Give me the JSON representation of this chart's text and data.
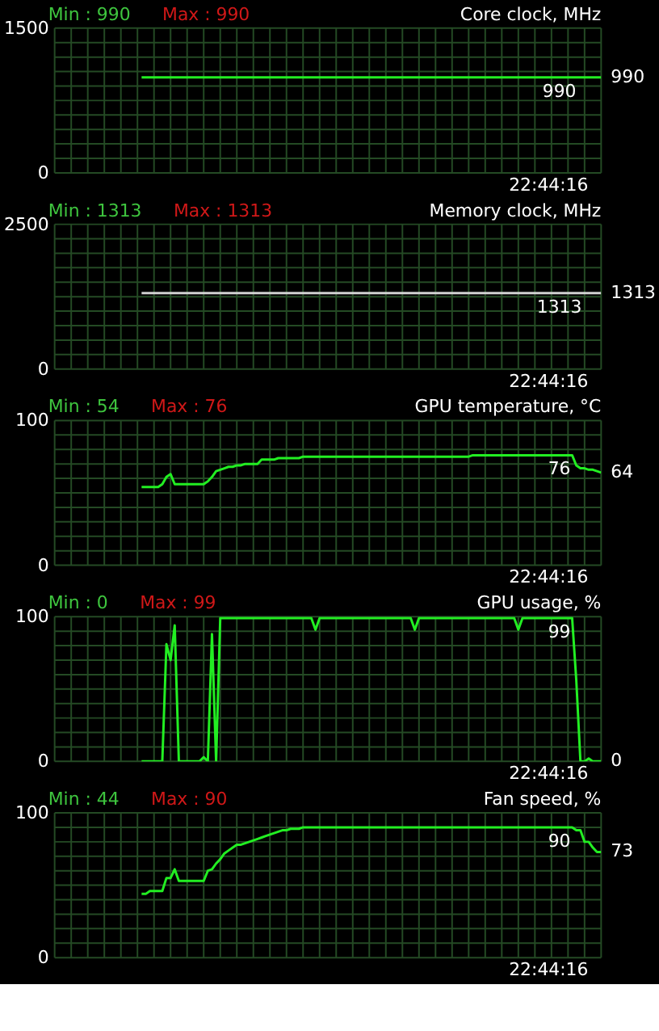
{
  "chart_data": [
    {
      "type": "line",
      "title": "Core clock, MHz",
      "ylim": [
        0,
        1500
      ],
      "grid": true,
      "tick_labels": "y",
      "categories": [
        null,
        null,
        null,
        null,
        null,
        null,
        null,
        null,
        null,
        null,
        null,
        null,
        null,
        null,
        null,
        null,
        null,
        null,
        null,
        null,
        null,
        null,
        null,
        null,
        null,
        null,
        null,
        null,
        null,
        null,
        null,
        null,
        null,
        null,
        null,
        null,
        null,
        null,
        null,
        null,
        null,
        null,
        null,
        null,
        null,
        null,
        null,
        null,
        null,
        null,
        null,
        null,
        null,
        null,
        null,
        null,
        null,
        null,
        null,
        null,
        null,
        null,
        null,
        null,
        null,
        null,
        null,
        null,
        null,
        null,
        null,
        null,
        null,
        null,
        null,
        null,
        null,
        null,
        null,
        null,
        null,
        null,
        null,
        null,
        null,
        null,
        null,
        null,
        null,
        null,
        null,
        null,
        null,
        null,
        null,
        null,
        null,
        null,
        null,
        null,
        null,
        null,
        null,
        null,
        null,
        null,
        null,
        null,
        null,
        null,
        null,
        null,
        null,
        null,
        null,
        null,
        null,
        null,
        null,
        null,
        null,
        null,
        null,
        null,
        null,
        null,
        null,
        null,
        null,
        null,
        null,
        null,
        null
      ],
      "yticks": [
        0,
        {
          "value": 150,
          "label": null
        },
        {
          "value": 300,
          "label": null
        },
        {
          "value": 450,
          "label": null
        },
        {
          "value": 600,
          "label": null
        },
        {
          "value": 750,
          "label": null
        },
        {
          "value": 900,
          "label": null
        },
        {
          "value": 1050,
          "label": null
        },
        {
          "value": 1200,
          "label": null
        },
        {
          "value": 1350,
          "label": null
        },
        1500
      ],
      "annotations": [
        "Min : 990",
        "Max : 990",
        "22:44:16",
        "990",
        "990"
      ],
      "series": [
        {
          "color": "#22ee22",
          "values": [
            null,
            null,
            null,
            null,
            null,
            null,
            null,
            null,
            null,
            null,
            null,
            null,
            null,
            null,
            null,
            null,
            null,
            null,
            null,
            null,
            null,
            990,
            990,
            990,
            990,
            990,
            990,
            990,
            990,
            990,
            990,
            990,
            990,
            990,
            990,
            990,
            990,
            990,
            990,
            990,
            990,
            990,
            990,
            990,
            990,
            990,
            990,
            990,
            990,
            990,
            990,
            990,
            990,
            990,
            990,
            990,
            990,
            990,
            990,
            990,
            990,
            990,
            990,
            990,
            990,
            990,
            990,
            990,
            990,
            990,
            990,
            990,
            990,
            990,
            990,
            990,
            990,
            990,
            990,
            990,
            990,
            990,
            990,
            990,
            990,
            990,
            990,
            990,
            990,
            990,
            990,
            990,
            990,
            990,
            990,
            990,
            990,
            990,
            990,
            990,
            990,
            990,
            990,
            990,
            990,
            990,
            990,
            990,
            990,
            990,
            990,
            990,
            990,
            990,
            990,
            990,
            990,
            990,
            990,
            990,
            990,
            990,
            990,
            990,
            990,
            990,
            990,
            990,
            990,
            990,
            990,
            990,
            990
          ]
        }
      ]
    },
    {
      "type": "line",
      "title": "Memory clock, MHz",
      "ylim": [
        0,
        2500
      ],
      "grid": true,
      "tick_labels": "y",
      "categories": [
        null,
        null,
        null,
        null,
        null,
        null,
        null,
        null,
        null,
        null,
        null,
        null,
        null,
        null,
        null,
        null,
        null,
        null,
        null,
        null,
        null,
        null,
        null,
        null,
        null,
        null,
        null,
        null,
        null,
        null,
        null,
        null,
        null,
        null,
        null,
        null,
        null,
        null,
        null,
        null,
        null,
        null,
        null,
        null,
        null,
        null,
        null,
        null,
        null,
        null,
        null,
        null,
        null,
        null,
        null,
        null,
        null,
        null,
        null,
        null,
        null,
        null,
        null,
        null,
        null,
        null,
        null,
        null,
        null,
        null,
        null,
        null,
        null,
        null,
        null,
        null,
        null,
        null,
        null,
        null,
        null,
        null,
        null,
        null,
        null,
        null,
        null,
        null,
        null,
        null,
        null,
        null,
        null,
        null,
        null,
        null,
        null,
        null,
        null,
        null,
        null,
        null,
        null,
        null,
        null,
        null,
        null,
        null,
        null,
        null,
        null,
        null,
        null,
        null,
        null,
        null,
        null,
        null,
        null,
        null,
        null,
        null,
        null,
        null,
        null,
        null,
        null,
        null,
        null,
        null,
        null,
        null,
        null
      ],
      "yticks": [
        0,
        {
          "value": 250,
          "label": null
        },
        {
          "value": 500,
          "label": null
        },
        {
          "value": 750,
          "label": null
        },
        {
          "value": 1000,
          "label": null
        },
        {
          "value": 1250,
          "label": null
        },
        {
          "value": 1500,
          "label": null
        },
        {
          "value": 1750,
          "label": null
        },
        {
          "value": 2000,
          "label": null
        },
        {
          "value": 2250,
          "label": null
        },
        2500
      ],
      "annotations": [
        "Min : 1313",
        "Max : 1313",
        "22:44:16",
        "1313",
        "1313"
      ],
      "series": [
        {
          "color": "#d0d0d0",
          "values": [
            null,
            null,
            null,
            null,
            null,
            null,
            null,
            null,
            null,
            null,
            null,
            null,
            null,
            null,
            null,
            null,
            null,
            null,
            null,
            null,
            null,
            1313,
            1313,
            1313,
            1313,
            1313,
            1313,
            1313,
            1313,
            1313,
            1313,
            1313,
            1313,
            1313,
            1313,
            1313,
            1313,
            1313,
            1313,
            1313,
            1313,
            1313,
            1313,
            1313,
            1313,
            1313,
            1313,
            1313,
            1313,
            1313,
            1313,
            1313,
            1313,
            1313,
            1313,
            1313,
            1313,
            1313,
            1313,
            1313,
            1313,
            1313,
            1313,
            1313,
            1313,
            1313,
            1313,
            1313,
            1313,
            1313,
            1313,
            1313,
            1313,
            1313,
            1313,
            1313,
            1313,
            1313,
            1313,
            1313,
            1313,
            1313,
            1313,
            1313,
            1313,
            1313,
            1313,
            1313,
            1313,
            1313,
            1313,
            1313,
            1313,
            1313,
            1313,
            1313,
            1313,
            1313,
            1313,
            1313,
            1313,
            1313,
            1313,
            1313,
            1313,
            1313,
            1313,
            1313,
            1313,
            1313,
            1313,
            1313,
            1313,
            1313,
            1313,
            1313,
            1313,
            1313,
            1313,
            1313,
            1313,
            1313,
            1313,
            1313,
            1313,
            1313,
            1313,
            1313,
            1313,
            1313,
            1313,
            1313,
            1313
          ]
        }
      ]
    },
    {
      "type": "line",
      "title": "GPU temperature, °C",
      "ylim": [
        0,
        100
      ],
      "grid": true,
      "tick_labels": "y",
      "categories": [
        null,
        null,
        null,
        null,
        null,
        null,
        null,
        null,
        null,
        null,
        null,
        null,
        null,
        null,
        null,
        null,
        null,
        null,
        null,
        null,
        null,
        null,
        null,
        null,
        null,
        null,
        null,
        null,
        null,
        null,
        null,
        null,
        null,
        null,
        null,
        null,
        null,
        null,
        null,
        null,
        null,
        null,
        null,
        null,
        null,
        null,
        null,
        null,
        null,
        null,
        null,
        null,
        null,
        null,
        null,
        null,
        null,
        null,
        null,
        null,
        null,
        null,
        null,
        null,
        null,
        null,
        null,
        null,
        null,
        null,
        null,
        null,
        null,
        null,
        null,
        null,
        null,
        null,
        null,
        null,
        null,
        null,
        null,
        null,
        null,
        null,
        null,
        null,
        null,
        null,
        null,
        null,
        null,
        null,
        null,
        null,
        null,
        null,
        null,
        null,
        null,
        null,
        null,
        null,
        null,
        null,
        null,
        null,
        null,
        null,
        null,
        null,
        null,
        null,
        null,
        null,
        null,
        null,
        null,
        null,
        null,
        null,
        null,
        null,
        null,
        null,
        null,
        null,
        null,
        null,
        null,
        null,
        null
      ],
      "yticks": [
        0,
        {
          "value": 10,
          "label": null
        },
        {
          "value": 20,
          "label": null
        },
        {
          "value": 30,
          "label": null
        },
        {
          "value": 40,
          "label": null
        },
        {
          "value": 50,
          "label": null
        },
        {
          "value": 60,
          "label": null
        },
        {
          "value": 70,
          "label": null
        },
        {
          "value": 80,
          "label": null
        },
        {
          "value": 90,
          "label": null
        },
        100
      ],
      "annotations": [
        "Min : 54",
        "Max : 76",
        "22:44:16",
        {
          "text": "76",
          "y": 76
        },
        "64"
      ],
      "series": [
        {
          "color": "#22ee22",
          "values": [
            null,
            null,
            null,
            null,
            null,
            null,
            null,
            null,
            null,
            null,
            null,
            null,
            null,
            null,
            null,
            null,
            null,
            null,
            null,
            null,
            null,
            54,
            54,
            54,
            54,
            54,
            56,
            61,
            63,
            56,
            56,
            56,
            56,
            56,
            56,
            56,
            56,
            58,
            61,
            65,
            66,
            67,
            68,
            68,
            69,
            69,
            70,
            70,
            70,
            70,
            73,
            73,
            73,
            73,
            74,
            74,
            74,
            74,
            74,
            74,
            75,
            75,
            75,
            75,
            75,
            75,
            75,
            75,
            75,
            75,
            75,
            75,
            75,
            75,
            75,
            75,
            75,
            75,
            75,
            75,
            75,
            75,
            75,
            75,
            75,
            75,
            75,
            75,
            75,
            75,
            75,
            75,
            75,
            75,
            75,
            75,
            75,
            75,
            75,
            75,
            75,
            76,
            76,
            76,
            76,
            76,
            76,
            76,
            76,
            76,
            76,
            76,
            76,
            76,
            76,
            76,
            76,
            76,
            76,
            76,
            76,
            76,
            76,
            76,
            76,
            76,
            69,
            67,
            67,
            66,
            66,
            65,
            64
          ]
        }
      ]
    },
    {
      "type": "line",
      "title": "GPU usage, %",
      "ylim": [
        0,
        100
      ],
      "grid": true,
      "tick_labels": "y",
      "categories": [
        null,
        null,
        null,
        null,
        null,
        null,
        null,
        null,
        null,
        null,
        null,
        null,
        null,
        null,
        null,
        null,
        null,
        null,
        null,
        null,
        null,
        null,
        null,
        null,
        null,
        null,
        null,
        null,
        null,
        null,
        null,
        null,
        null,
        null,
        null,
        null,
        null,
        null,
        null,
        null,
        null,
        null,
        null,
        null,
        null,
        null,
        null,
        null,
        null,
        null,
        null,
        null,
        null,
        null,
        null,
        null,
        null,
        null,
        null,
        null,
        null,
        null,
        null,
        null,
        null,
        null,
        null,
        null,
        null,
        null,
        null,
        null,
        null,
        null,
        null,
        null,
        null,
        null,
        null,
        null,
        null,
        null,
        null,
        null,
        null,
        null,
        null,
        null,
        null,
        null,
        null,
        null,
        null,
        null,
        null,
        null,
        null,
        null,
        null,
        null,
        null,
        null,
        null,
        null,
        null,
        null,
        null,
        null,
        null,
        null,
        null,
        null,
        null,
        null,
        null,
        null,
        null,
        null,
        null,
        null,
        null,
        null,
        null,
        null,
        null,
        null,
        null,
        null,
        null,
        null,
        null,
        null,
        null
      ],
      "yticks": [
        0,
        {
          "value": 10,
          "label": null
        },
        {
          "value": 20,
          "label": null
        },
        {
          "value": 30,
          "label": null
        },
        {
          "value": 40,
          "label": null
        },
        {
          "value": 50,
          "label": null
        },
        {
          "value": 60,
          "label": null
        },
        {
          "value": 70,
          "label": null
        },
        {
          "value": 80,
          "label": null
        },
        {
          "value": 90,
          "label": null
        },
        100
      ],
      "annotations": [
        "Min : 0",
        "Max : 99",
        "22:44:16",
        {
          "text": "99",
          "y": 99
        },
        "0"
      ],
      "series": [
        {
          "color": "#22ee22",
          "values": [
            null,
            null,
            null,
            null,
            null,
            null,
            null,
            null,
            null,
            null,
            null,
            null,
            null,
            null,
            null,
            null,
            null,
            null,
            null,
            null,
            null,
            0,
            0,
            0,
            0,
            0,
            0,
            81,
            70,
            94,
            0,
            0,
            0,
            0,
            0,
            0,
            3,
            0,
            88,
            0,
            99,
            99,
            99,
            99,
            99,
            99,
            99,
            99,
            99,
            99,
            99,
            99,
            99,
            99,
            99,
            99,
            99,
            99,
            99,
            99,
            99,
            99,
            99,
            91,
            99,
            99,
            99,
            99,
            99,
            99,
            99,
            99,
            99,
            99,
            99,
            99,
            99,
            99,
            99,
            99,
            99,
            99,
            99,
            99,
            99,
            99,
            99,
            91,
            99,
            99,
            99,
            99,
            99,
            99,
            99,
            99,
            99,
            99,
            99,
            99,
            99,
            99,
            99,
            99,
            99,
            99,
            99,
            99,
            99,
            99,
            99,
            99,
            91,
            99,
            99,
            99,
            99,
            99,
            99,
            99,
            99,
            99,
            99,
            99,
            99,
            99,
            56,
            0,
            0,
            2,
            0,
            0,
            0
          ]
        }
      ]
    },
    {
      "type": "line",
      "title": "Fan speed, %",
      "ylim": [
        0,
        100
      ],
      "grid": true,
      "tick_labels": "y",
      "categories": [
        null,
        null,
        null,
        null,
        null,
        null,
        null,
        null,
        null,
        null,
        null,
        null,
        null,
        null,
        null,
        null,
        null,
        null,
        null,
        null,
        null,
        null,
        null,
        null,
        null,
        null,
        null,
        null,
        null,
        null,
        null,
        null,
        null,
        null,
        null,
        null,
        null,
        null,
        null,
        null,
        null,
        null,
        null,
        null,
        null,
        null,
        null,
        null,
        null,
        null,
        null,
        null,
        null,
        null,
        null,
        null,
        null,
        null,
        null,
        null,
        null,
        null,
        null,
        null,
        null,
        null,
        null,
        null,
        null,
        null,
        null,
        null,
        null,
        null,
        null,
        null,
        null,
        null,
        null,
        null,
        null,
        null,
        null,
        null,
        null,
        null,
        null,
        null,
        null,
        null,
        null,
        null,
        null,
        null,
        null,
        null,
        null,
        null,
        null,
        null,
        null,
        null,
        null,
        null,
        null,
        null,
        null,
        null,
        null,
        null,
        null,
        null,
        null,
        null,
        null,
        null,
        null,
        null,
        null,
        null,
        null,
        null,
        null,
        null,
        null,
        null,
        null,
        null,
        null,
        null,
        null,
        null,
        null
      ],
      "yticks": [
        0,
        {
          "value": 10,
          "label": null
        },
        {
          "value": 20,
          "label": null
        },
        {
          "value": 30,
          "label": null
        },
        {
          "value": 40,
          "label": null
        },
        {
          "value": 50,
          "label": null
        },
        {
          "value": 60,
          "label": null
        },
        {
          "value": 70,
          "label": null
        },
        {
          "value": 80,
          "label": null
        },
        {
          "value": 90,
          "label": null
        },
        100
      ],
      "annotations": [
        "Min : 44",
        "Max : 90",
        "22:44:16",
        {
          "text": "90",
          "y": 90
        },
        "73"
      ],
      "series": [
        {
          "color": "#22ee22",
          "values": [
            null,
            null,
            null,
            null,
            null,
            null,
            null,
            null,
            null,
            null,
            null,
            null,
            null,
            null,
            null,
            null,
            null,
            null,
            null,
            null,
            null,
            44,
            44,
            46,
            46,
            46,
            46,
            55,
            55,
            61,
            53,
            53,
            53,
            53,
            53,
            53,
            53,
            60,
            61,
            65,
            68,
            72,
            74,
            76,
            78,
            78,
            79,
            80,
            81,
            82,
            83,
            84,
            85,
            86,
            87,
            88,
            88,
            89,
            89,
            89,
            90,
            90,
            90,
            90,
            90,
            90,
            90,
            90,
            90,
            90,
            90,
            90,
            90,
            90,
            90,
            90,
            90,
            90,
            90,
            90,
            90,
            90,
            90,
            90,
            90,
            90,
            90,
            90,
            90,
            90,
            90,
            90,
            90,
            90,
            90,
            90,
            90,
            90,
            90,
            90,
            90,
            90,
            90,
            90,
            90,
            90,
            90,
            90,
            90,
            90,
            90,
            90,
            90,
            90,
            90,
            90,
            90,
            90,
            90,
            90,
            90,
            90,
            90,
            90,
            90,
            90,
            88,
            88,
            80,
            80,
            76,
            73,
            73
          ]
        }
      ]
    }
  ]
}
